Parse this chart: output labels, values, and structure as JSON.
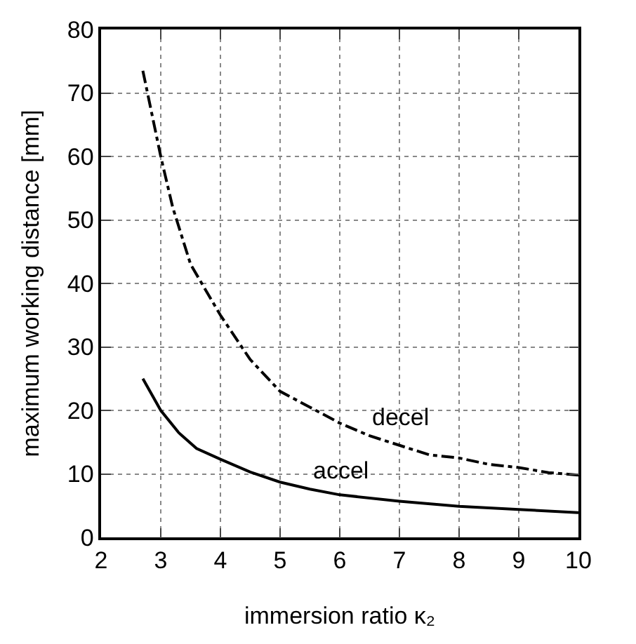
{
  "chart_data": {
    "type": "line",
    "xlabel": "immersion ratio κ₂",
    "ylabel": "maximum working distance [mm]",
    "xlim": [
      2,
      10
    ],
    "xticks": [
      2,
      3,
      4,
      5,
      6,
      7,
      8,
      9,
      10
    ],
    "ylim": [
      0,
      80
    ],
    "yticks": [
      0,
      10,
      20,
      30,
      40,
      50,
      60,
      70,
      80
    ],
    "grid": true,
    "legend": false,
    "marker": "none",
    "series": [
      {
        "name": "decel",
        "color": "#000000",
        "line_style": "dashdot",
        "x": [
          2.7,
          3,
          3.2,
          3.5,
          4,
          4.5,
          5,
          5.5,
          6,
          6.5,
          7,
          7.5,
          8,
          8.5,
          9,
          9.5,
          10
        ],
        "values": [
          73.5,
          60,
          52,
          43,
          35,
          28,
          23,
          20.5,
          18,
          16,
          14.5,
          13,
          12.5,
          11.5,
          11,
          10.2,
          9.8
        ]
      },
      {
        "name": "accel",
        "color": "#000000",
        "line_style": "solid",
        "x": [
          2.7,
          3,
          3.3,
          3.6,
          4,
          4.5,
          5,
          5.5,
          6,
          7,
          8,
          9,
          10
        ],
        "values": [
          25,
          20,
          16.5,
          14,
          12.3,
          10.3,
          8.7,
          7.6,
          6.7,
          5.7,
          4.9,
          4.4,
          3.9
        ]
      }
    ]
  }
}
